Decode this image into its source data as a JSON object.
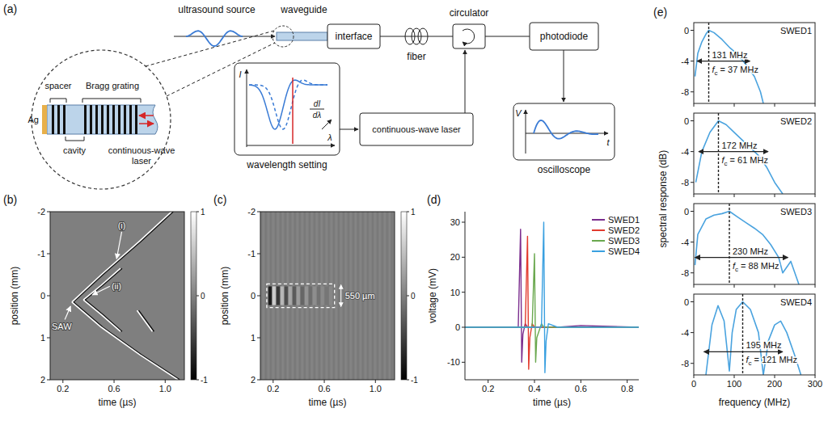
{
  "diagram": {
    "label": "(a)",
    "top_labels": {
      "source": "ultrasound source",
      "waveguide": "waveguide"
    },
    "inset": {
      "ag": "Ag",
      "spacer": "spacer",
      "bragg": "Bragg grating",
      "cavity": "cavity",
      "laser": "continuous-wave laser"
    },
    "components": {
      "interface": "interface",
      "fiber": "fiber",
      "circulator": "circulator",
      "photodiode": "photodiode",
      "laser": "continuous-wave laser",
      "oscilloscope": "oscilloscope"
    },
    "wavelength_setting": {
      "title": "wavelength setting",
      "y_axis": "I",
      "x_axis": "λ",
      "derivative_num": "dI",
      "derivative_den": "dλ"
    },
    "oscilloscope_axes": {
      "y_axis": "V",
      "x_axis": "t"
    }
  },
  "chart_data": [
    {
      "panel": "(b)",
      "type": "image",
      "xlabel": "time (µs)",
      "ylabel": "position (mm)",
      "xlim": [
        0.1,
        1.15
      ],
      "ylim": [
        2,
        -2
      ],
      "xticks": [
        0.2,
        0.6,
        {
          "value": 1,
          "label": "1.0"
        }
      ],
      "yticks": [
        -2,
        -1,
        0,
        1,
        2
      ],
      "colorbar": {
        "range": [
          -1,
          1
        ],
        "ticks": [
          -1,
          0,
          1
        ]
      },
      "annotations": [
        "(i)",
        "(ii)",
        "SAW"
      ],
      "series": [
        {
          "x": [
            0.27,
            0.5,
            0.8,
            1.05
          ],
          "values": [
            0.15,
            -0.5,
            -1.3,
            -2
          ]
        },
        {
          "x": [
            0.27,
            0.5,
            0.8,
            1.1
          ],
          "values": [
            0.15,
            0.75,
            1.4,
            2
          ]
        },
        {
          "x": [
            0.36,
            0.5,
            0.65
          ],
          "values": [
            0.1,
            -0.25,
            -0.65
          ]
        },
        {
          "x": [
            0.36,
            0.5,
            0.65
          ],
          "values": [
            0.1,
            0.45,
            0.85
          ]
        },
        {
          "x": [
            0.78,
            0.9
          ],
          "values": [
            0.35,
            0.85
          ]
        }
      ]
    },
    {
      "panel": "(c)",
      "type": "image",
      "xlabel": "time (µs)",
      "ylabel": "position (mm)",
      "xlim": [
        0.1,
        1.15
      ],
      "ylim": [
        2,
        -2
      ],
      "xticks": [
        0.2,
        0.6,
        {
          "value": 1,
          "label": "1.0"
        }
      ],
      "yticks": [
        -2,
        -1,
        0,
        1,
        2
      ],
      "colorbar": {
        "range": [
          -1,
          1
        ],
        "ticks": [
          -1,
          0,
          1
        ]
      },
      "box": {
        "x": [
          0.15,
          0.68
        ],
        "y": [
          -0.28,
          0.28
        ],
        "label": "550 µm"
      }
    },
    {
      "panel": "(d)",
      "type": "line",
      "xlabel": "time (µs)",
      "ylabel": "voltage (mV)",
      "xlim": [
        0.1,
        0.85
      ],
      "ylim": [
        -15,
        33
      ],
      "xticks": [
        0.2,
        0.4,
        0.6,
        0.8
      ],
      "yticks": [
        -10,
        0,
        10,
        20,
        30
      ],
      "legend": "top-right",
      "x": [
        0.1,
        0.3,
        0.33,
        0.34,
        0.345,
        0.35,
        0.36,
        0.37,
        0.375,
        0.38,
        0.39,
        0.4,
        0.405,
        0.41,
        0.43,
        0.44,
        0.445,
        0.45,
        0.46,
        0.5,
        0.6,
        0.85
      ],
      "series": [
        {
          "name": "SWED1",
          "color": "#7b2d8e",
          "values": [
            0,
            0,
            0,
            28,
            -10,
            -2,
            1,
            0,
            0,
            0,
            0,
            0,
            0,
            0,
            0,
            0,
            0,
            0,
            0,
            0,
            0.5,
            0
          ]
        },
        {
          "name": "SWED2",
          "color": "#e23b2e",
          "values": [
            0,
            0,
            0,
            0,
            0,
            0,
            0,
            26,
            -12,
            -3,
            1,
            0,
            0,
            0,
            0,
            0,
            0,
            0,
            0,
            0,
            0,
            0
          ]
        },
        {
          "name": "SWED3",
          "color": "#6aa84f",
          "values": [
            0,
            0,
            0,
            0,
            0,
            0,
            0,
            0,
            0,
            0,
            0,
            21,
            -10,
            -3,
            1,
            0,
            0,
            0,
            0,
            0,
            0,
            0
          ]
        },
        {
          "name": "SWED4",
          "color": "#3aa0e0",
          "values": [
            0,
            0,
            0,
            0,
            0,
            0,
            0,
            0,
            0,
            0,
            0,
            0,
            0,
            0,
            0,
            30,
            -13,
            -4,
            1,
            0,
            0,
            0
          ]
        }
      ]
    },
    {
      "panel": "(e)",
      "type": "line",
      "xlabel": "frequency (MHz)",
      "ylabel": "spectral response (dB)",
      "xlim": [
        0,
        300
      ],
      "ylim": [
        -9.5,
        1
      ],
      "xticks": [
        0,
        100,
        200,
        300
      ],
      "yticks": [
        0,
        -4,
        -8
      ],
      "color": "#4aa3df",
      "subplots": [
        {
          "name": "SWED1",
          "fc": 37,
          "fc_label": {
            "symbol": "f",
            "sub": "c",
            "text": "= 37 MHz"
          },
          "bandwidth": {
            "range": [
              8,
              139
            ],
            "level": -4,
            "label": "131 MHz"
          },
          "x": [
            3,
            10,
            20,
            30,
            37,
            50,
            70,
            90,
            110,
            130,
            150,
            165,
            172
          ],
          "values": [
            -6,
            -3,
            -1.5,
            -0.5,
            0,
            -0.3,
            -1.2,
            -2.3,
            -3.2,
            -4.5,
            -6,
            -8,
            -9.5
          ]
        },
        {
          "name": "SWED2",
          "fc": 61,
          "fc_label": {
            "symbol": "f",
            "sub": "c",
            "text": "= 61 MHz"
          },
          "bandwidth": {
            "range": [
              12,
              184
            ],
            "level": -4,
            "label": "172 MHz"
          },
          "x": [
            5,
            20,
            40,
            61,
            80,
            100,
            120,
            140,
            160,
            180,
            200,
            220
          ],
          "values": [
            -8,
            -4,
            -1.5,
            0,
            -0.5,
            -1.5,
            -2.5,
            -3.5,
            -4.5,
            -6,
            -8,
            -9.5
          ]
        },
        {
          "name": "SWED3",
          "fc": 88,
          "fc_label": {
            "symbol": "f",
            "sub": "c",
            "text": "= 88 MHz"
          },
          "bandwidth": {
            "range": [
              3,
              233
            ],
            "level": -6,
            "label": "230 MHz"
          },
          "x": [
            3,
            10,
            30,
            50,
            70,
            88,
            110,
            130,
            150,
            170,
            190,
            210,
            220,
            240,
            250,
            260
          ],
          "values": [
            -7,
            -3,
            -1,
            -0.5,
            -0.3,
            0,
            -0.8,
            -1.5,
            -2.2,
            -3,
            -4.3,
            -6,
            -8,
            -6.5,
            -8,
            -9.5
          ]
        },
        {
          "name": "SWED4",
          "fc": 121,
          "fc_label": {
            "symbol": "f",
            "sub": "c",
            "text": "= 121 MHz"
          },
          "bandwidth": {
            "range": [
              25,
              220
            ],
            "level": -6.5,
            "label": "195 MHz"
          },
          "x": [
            30,
            45,
            60,
            75,
            88,
            95,
            105,
            121,
            140,
            160,
            172,
            185,
            200,
            215,
            230,
            250,
            265
          ],
          "values": [
            -9.5,
            -3,
            -0.5,
            -2.5,
            -9,
            -4,
            -1,
            0,
            -1,
            -4,
            -9.5,
            -5,
            -3,
            -2.5,
            -4,
            -7,
            -9.5
          ]
        }
      ]
    }
  ]
}
